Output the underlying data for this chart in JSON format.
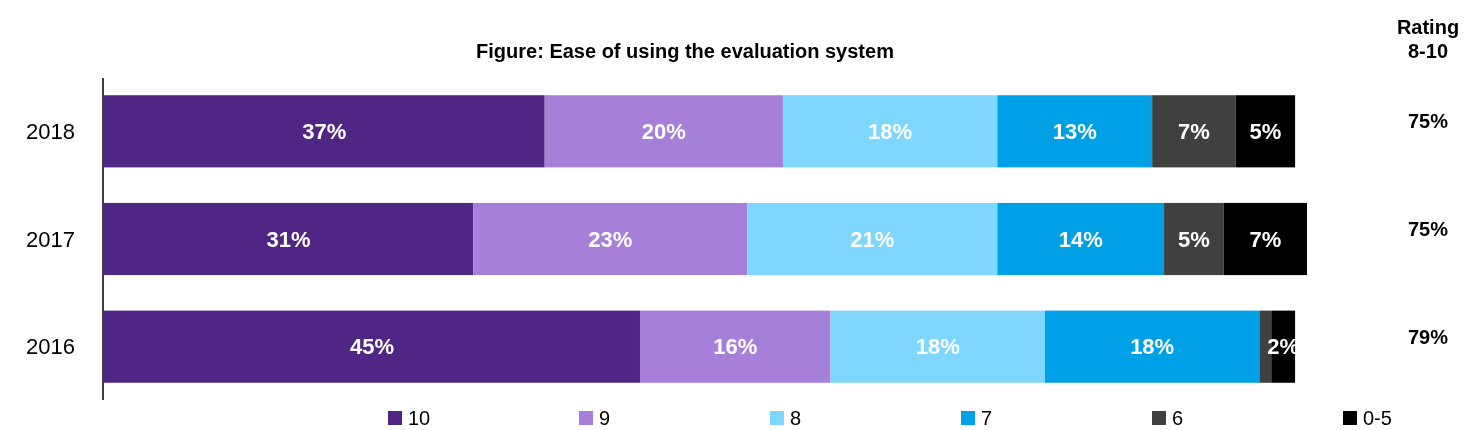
{
  "chart_data": {
    "type": "bar",
    "orientation": "horizontal",
    "stacked": true,
    "title": "Figure: Ease of using the evaluation system",
    "categories": [
      "2018",
      "2017",
      "2016"
    ],
    "series": [
      {
        "name": "10",
        "color": "#4f2683",
        "values": [
          37,
          31,
          45
        ],
        "value_labels": [
          "37%",
          "31%",
          "45%"
        ]
      },
      {
        "name": "9",
        "color": "#a57fd8",
        "values": [
          20,
          23,
          16
        ],
        "value_labels": [
          "20%",
          "23%",
          "16%"
        ]
      },
      {
        "name": "8",
        "color": "#7fd6ff",
        "values": [
          18,
          21,
          18
        ],
        "value_labels": [
          "18%",
          "21%",
          "18%"
        ]
      },
      {
        "name": "7",
        "color": "#00a0e6",
        "values": [
          13,
          14,
          18
        ],
        "value_labels": [
          "13%",
          "14%",
          "18%"
        ]
      },
      {
        "name": "6",
        "color": "#404040",
        "values": [
          7,
          5,
          1
        ],
        "value_labels": [
          "7%",
          "5%",
          null
        ]
      },
      {
        "name": "0-5",
        "color": "#000000",
        "values": [
          5,
          7,
          2
        ],
        "value_labels": [
          "5%",
          "7%",
          "2%"
        ]
      }
    ],
    "xlim": [
      0,
      101
    ],
    "tick_labels": "y",
    "legend": "bottom",
    "annotations": [
      "Rating 8-10",
      "75%",
      "75%",
      "79%"
    ]
  }
}
